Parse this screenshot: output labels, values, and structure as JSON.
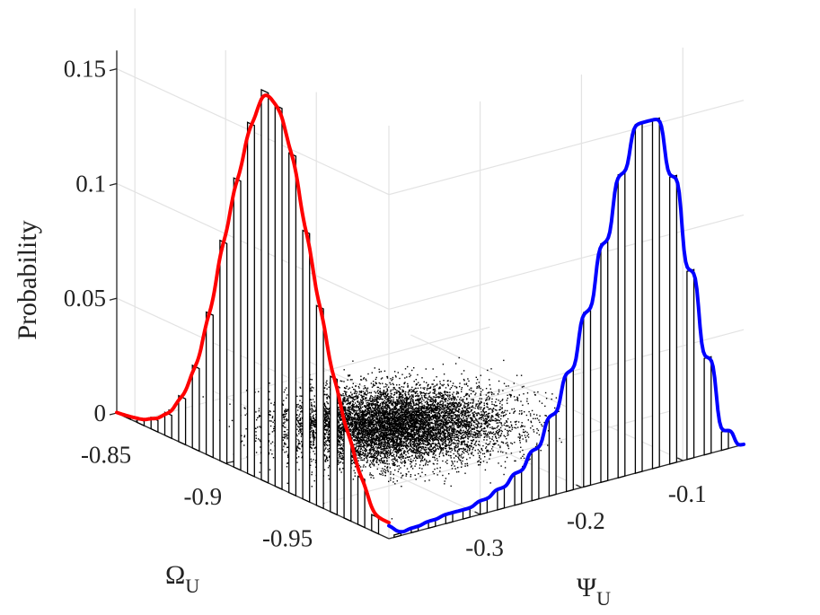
{
  "chart_data": {
    "type": "3d-histogram-scatter",
    "zlabel": "Probability",
    "xlabel": "Ω",
    "xlabel_sub": "U",
    "ylabel": "Ψ",
    "ylabel_sub": "U",
    "x_ticks": [
      -0.85,
      -0.9,
      -0.95
    ],
    "x_tick_labels": [
      "-0.85",
      "-0.9",
      "-0.95"
    ],
    "y_ticks": [
      -0.3,
      -0.2,
      -0.1
    ],
    "y_tick_labels": [
      "-0.3",
      "-0.2",
      "-0.1"
    ],
    "z_ticks": [
      0,
      0.05,
      0.1,
      0.15
    ],
    "z_tick_labels": [
      "0",
      "0.05",
      "0.1",
      "0.15"
    ],
    "x_range": [
      -0.84,
      -0.99
    ],
    "y_range": [
      -0.39,
      -0.04
    ],
    "z_range": [
      0,
      0.18
    ],
    "grid": true,
    "omega_histogram": {
      "bin_centers": [
        -0.8456,
        -0.8532,
        -0.8608,
        -0.8684,
        -0.876,
        -0.8836,
        -0.8912,
        -0.8988,
        -0.9064,
        -0.914,
        -0.9216,
        -0.9292,
        -0.9368,
        -0.9444,
        -0.952,
        -0.9596,
        -0.9672,
        -0.9748,
        -0.9824
      ],
      "values": [
        0.001,
        0.002,
        0.005,
        0.01,
        0.02,
        0.036,
        0.062,
        0.096,
        0.126,
        0.153,
        0.17,
        0.166,
        0.148,
        0.117,
        0.087,
        0.059,
        0.038,
        0.021,
        0.007
      ],
      "fit_color": "#ff0000"
    },
    "psi_histogram": {
      "bin_centers": [
        -0.3815,
        -0.3645,
        -0.3475,
        -0.3305,
        -0.3135,
        -0.2965,
        -0.2795,
        -0.2625,
        -0.2455,
        -0.2285,
        -0.2115,
        -0.1945,
        -0.1775,
        -0.1605,
        -0.1435,
        -0.1265,
        -0.1095,
        -0.0925,
        -0.0755,
        -0.0585
      ],
      "values": [
        0.001,
        0.002,
        0.003,
        0.004,
        0.004,
        0.006,
        0.009,
        0.014,
        0.022,
        0.035,
        0.052,
        0.076,
        0.104,
        0.132,
        0.152,
        0.152,
        0.125,
        0.082,
        0.042,
        0.008
      ],
      "fit_color": "#0000ff"
    },
    "scatter": {
      "color": "#000000",
      "count": 9000,
      "center": [
        -0.905,
        -0.235
      ],
      "std": [
        0.018,
        0.045
      ]
    }
  }
}
